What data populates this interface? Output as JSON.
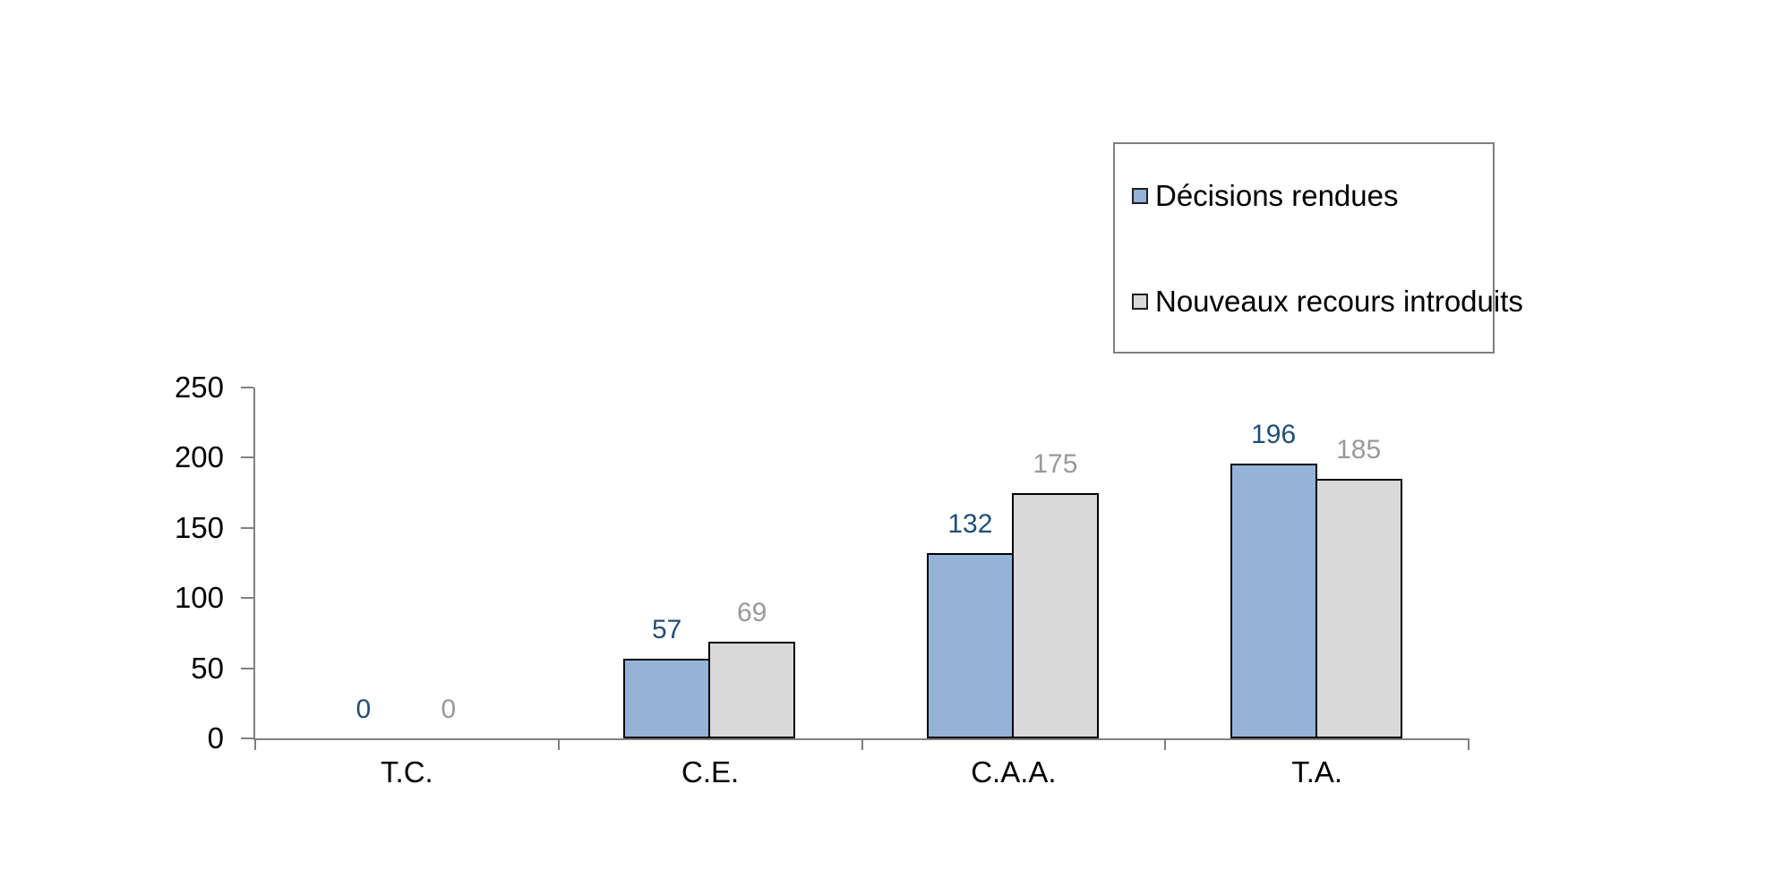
{
  "chart_data": {
    "type": "bar",
    "categories": [
      "T.C.",
      "C.E.",
      "C.A.A.",
      "T.A."
    ],
    "series": [
      {
        "name": "Décisions rendues",
        "values": [
          0,
          57,
          132,
          196
        ],
        "fill": "#95B3D7",
        "value_label_color": "#1F4E79"
      },
      {
        "name": "Nouveaux recours introduits",
        "values": [
          0,
          69,
          175,
          185
        ],
        "fill": "#D9D9D9",
        "value_label_color": "#999999"
      }
    ],
    "title": "",
    "xlabel": "",
    "ylabel": "",
    "ylim": [
      0,
      250
    ],
    "yticks": [
      0,
      50,
      100,
      150,
      200,
      250
    ],
    "grid": false,
    "legend_position": "top-right",
    "bar_border_color": "#000000",
    "axis_color": "#808080",
    "background_color": "#FFFFFF"
  }
}
